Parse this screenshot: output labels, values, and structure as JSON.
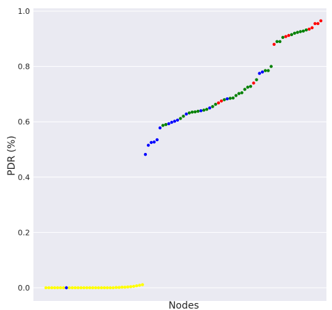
{
  "chart_data": {
    "type": "scatter",
    "title": "",
    "xlabel": "Nodes",
    "ylabel": "PDR (%)",
    "ylim": [
      -0.02,
      1.0
    ],
    "xlim": [
      0,
      100
    ],
    "yticks": [
      "0.0",
      "0.2",
      "0.4",
      "0.6",
      "0.8",
      "1.0"
    ],
    "grid": true,
    "legend": "none",
    "colors": {
      "background": "#eaeaf2",
      "grid": "#ffffff",
      "yellow": "#ffff00",
      "blue": "#0000ff",
      "green": "#008000",
      "red": "#ff0000"
    },
    "series": [
      {
        "color": "yellow",
        "points": [
          [
            1,
            0.0
          ],
          [
            2,
            0.0
          ],
          [
            3,
            0.0
          ],
          [
            4,
            0.0
          ],
          [
            5,
            0.0
          ],
          [
            6,
            0.0
          ],
          [
            7,
            0.0
          ],
          [
            9,
            0.0
          ],
          [
            10,
            0.0
          ],
          [
            11,
            0.0
          ],
          [
            12,
            0.0
          ],
          [
            13,
            0.0
          ],
          [
            14,
            0.0
          ],
          [
            15,
            0.0
          ],
          [
            16,
            0.0
          ],
          [
            17,
            0.0
          ],
          [
            18,
            0.0
          ],
          [
            19,
            0.0
          ],
          [
            20,
            0.0
          ],
          [
            21,
            0.0
          ],
          [
            22,
            0.0
          ],
          [
            23,
            0.0
          ],
          [
            24,
            0.0
          ],
          [
            25,
            0.001
          ],
          [
            26,
            0.001
          ],
          [
            27,
            0.002
          ],
          [
            28,
            0.002
          ],
          [
            29,
            0.003
          ],
          [
            30,
            0.004
          ],
          [
            31,
            0.005
          ],
          [
            32,
            0.007
          ],
          [
            33,
            0.009
          ],
          [
            34,
            0.011
          ]
        ]
      },
      {
        "color": "blue",
        "points": [
          [
            8,
            0.0
          ],
          [
            35,
            0.482
          ],
          [
            36,
            0.515
          ],
          [
            37,
            0.525
          ],
          [
            38,
            0.527
          ],
          [
            39,
            0.535
          ],
          [
            40,
            0.578
          ],
          [
            43,
            0.593
          ],
          [
            44,
            0.598
          ],
          [
            45,
            0.602
          ],
          [
            46,
            0.606
          ],
          [
            49,
            0.628
          ],
          [
            54,
            0.64
          ],
          [
            57,
            0.65
          ],
          [
            63,
            0.683
          ],
          [
            74,
            0.775
          ],
          [
            75,
            0.78
          ]
        ]
      },
      {
        "color": "green",
        "points": [
          [
            41,
            0.587
          ],
          [
            42,
            0.59
          ],
          [
            47,
            0.612
          ],
          [
            48,
            0.62
          ],
          [
            50,
            0.632
          ],
          [
            51,
            0.635
          ],
          [
            52,
            0.636
          ],
          [
            53,
            0.638
          ],
          [
            55,
            0.642
          ],
          [
            56,
            0.645
          ],
          [
            58,
            0.655
          ],
          [
            59,
            0.663
          ],
          [
            62,
            0.68
          ],
          [
            64,
            0.685
          ],
          [
            65,
            0.686
          ],
          [
            66,
            0.695
          ],
          [
            67,
            0.702
          ],
          [
            68,
            0.705
          ],
          [
            69,
            0.717
          ],
          [
            70,
            0.725
          ],
          [
            71,
            0.728
          ],
          [
            73,
            0.752
          ],
          [
            76,
            0.785
          ],
          [
            77,
            0.785
          ],
          [
            78,
            0.8
          ],
          [
            80,
            0.89
          ],
          [
            81,
            0.89
          ],
          [
            82,
            0.905
          ],
          [
            85,
            0.915
          ],
          [
            86,
            0.92
          ],
          [
            87,
            0.923
          ],
          [
            88,
            0.926
          ],
          [
            89,
            0.928
          ],
          [
            90,
            0.932
          ]
        ]
      },
      {
        "color": "red",
        "points": [
          [
            60,
            0.668
          ],
          [
            61,
            0.675
          ],
          [
            72,
            0.74
          ],
          [
            79,
            0.88
          ],
          [
            83,
            0.908
          ],
          [
            84,
            0.912
          ],
          [
            91,
            0.935
          ],
          [
            92,
            0.94
          ],
          [
            93,
            0.955
          ],
          [
            94,
            0.955
          ],
          [
            95,
            0.965
          ]
        ]
      }
    ]
  }
}
